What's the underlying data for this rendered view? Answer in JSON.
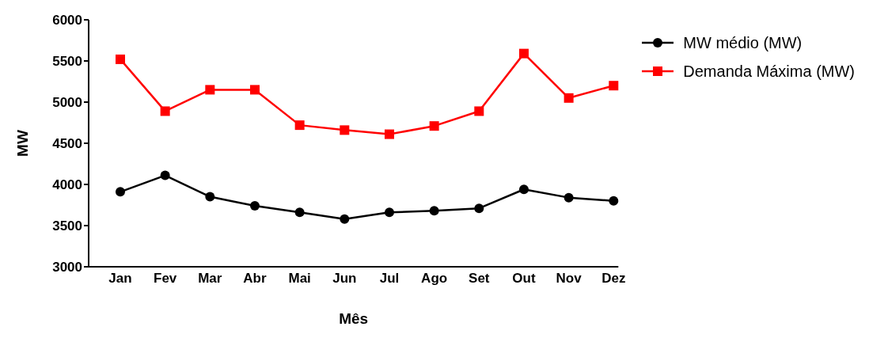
{
  "chart_data": {
    "type": "line",
    "xlabel": "Mês",
    "ylabel": "MW",
    "categories": [
      "Jan",
      "Fev",
      "Mar",
      "Abr",
      "Mai",
      "Jun",
      "Jul",
      "Ago",
      "Set",
      "Out",
      "Nov",
      "Dez"
    ],
    "series": [
      {
        "name": "MW médio (MW)",
        "color": "#000000",
        "marker": "circle",
        "values": [
          3910,
          4110,
          3850,
          3740,
          3660,
          3580,
          3660,
          3680,
          3710,
          3940,
          3840,
          3800
        ]
      },
      {
        "name": "Demanda Máxima (MW)",
        "color": "#ff0000",
        "marker": "square",
        "values": [
          5520,
          4890,
          5150,
          5150,
          4720,
          4660,
          4610,
          4710,
          4890,
          5590,
          5050,
          5200
        ]
      }
    ],
    "ylim": [
      3000,
      6000
    ],
    "yticks": [
      3000,
      3500,
      4000,
      4500,
      5000,
      5500,
      6000
    ],
    "grid": false,
    "legend": "top right",
    "line_style": "solid"
  }
}
